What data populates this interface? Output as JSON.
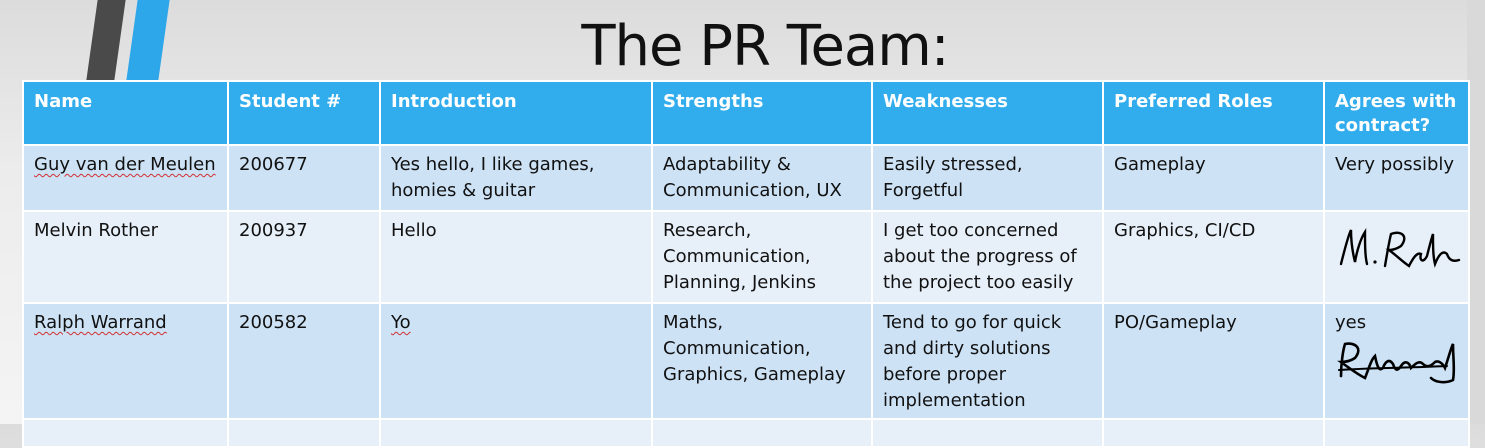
{
  "slide": {
    "title": "The PR Team:"
  },
  "table": {
    "headers": [
      "Name",
      "Student #",
      "Introduction",
      "Strengths",
      "Weaknesses",
      "Preferred Roles",
      "Agrees with contract?"
    ],
    "rows": [
      {
        "name": "Guy van der Meulen",
        "student": "200677",
        "intro": "Yes hello, I like games, homies & guitar",
        "strengths": "Adaptability & Communication, UX",
        "weaknesses": "Easily stressed, Forgetful",
        "roles": "Gameplay",
        "agrees": "Very possibly"
      },
      {
        "name": "Melvin Rother",
        "student": "200937",
        "intro": "Hello",
        "strengths": "Research, Communication, Planning, Jenkins",
        "weaknesses": "I get too concerned about the progress of the project too easily",
        "roles": "Graphics, CI/CD",
        "agrees": "",
        "signature": "M. Rother"
      },
      {
        "name": "Ralph Warrand",
        "student": "200582",
        "intro": "Yo",
        "strengths": "Maths, Communication, Graphics, Gameplay",
        "weaknesses": "Tend to go for quick and dirty solutions before proper implementation",
        "roles": "PO/Gameplay",
        "agrees": "yes",
        "signature": "RWarrand"
      }
    ]
  }
}
